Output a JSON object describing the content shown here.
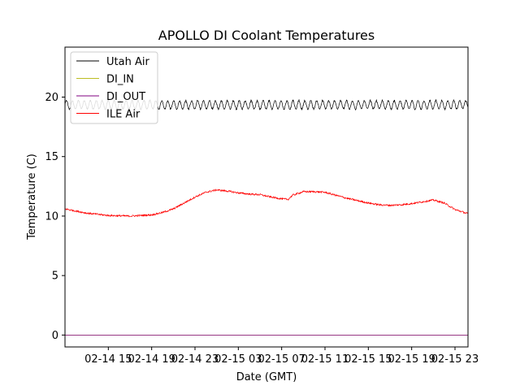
{
  "chart_data": {
    "type": "line",
    "title": "APOLLO DI Coolant Temperatures",
    "xlabel": "Date (GMT)",
    "ylabel": "Temperature (C)",
    "x_unit": "hours since 02-14 11:00 GMT",
    "xlim": [
      0,
      37.2
    ],
    "ylim": [
      -1,
      24.2
    ],
    "x_ticks": [
      {
        "value": 4,
        "label": "02-14 15"
      },
      {
        "value": 8,
        "label": "02-14 19"
      },
      {
        "value": 12,
        "label": "02-14 23"
      },
      {
        "value": 16,
        "label": "02-15 03"
      },
      {
        "value": 20,
        "label": "02-15 07"
      },
      {
        "value": 24,
        "label": "02-15 11"
      },
      {
        "value": 28,
        "label": "02-15 15"
      },
      {
        "value": 32,
        "label": "02-15 19"
      },
      {
        "value": 36,
        "label": "02-15 23"
      }
    ],
    "y_ticks": [
      {
        "value": 0,
        "label": "0"
      },
      {
        "value": 5,
        "label": "5"
      },
      {
        "value": 10,
        "label": "10"
      },
      {
        "value": 15,
        "label": "15"
      },
      {
        "value": 20,
        "label": "20"
      }
    ],
    "legend_position": "top-left",
    "series": [
      {
        "name": "Utah Air",
        "color": "#000000",
        "style": "oscillating",
        "center": 19.35,
        "amplitude": 0.35,
        "period": 0.55,
        "x": [
          0,
          37.2
        ],
        "y": [
          19.35,
          19.35
        ]
      },
      {
        "name": "DI_IN",
        "color": "#bcbd22",
        "style": "flat",
        "x": [
          0,
          37.2
        ],
        "y": [
          0,
          0
        ]
      },
      {
        "name": "DI_OUT",
        "color": "#800080",
        "style": "flat",
        "x": [
          0,
          37.2
        ],
        "y": [
          0,
          0
        ]
      },
      {
        "name": "ILE Air",
        "color": "#ff0000",
        "style": "noisy",
        "noise": 0.08,
        "x": [
          0,
          2,
          4,
          6,
          8,
          9,
          10,
          11,
          12,
          13,
          14,
          15,
          16,
          17,
          18,
          19,
          20,
          20.6,
          21,
          22,
          23,
          24,
          25,
          26,
          27,
          28,
          29,
          30,
          31,
          32,
          33,
          34,
          35,
          36,
          37.2
        ],
        "y": [
          10.6,
          10.25,
          10.05,
          10.0,
          10.1,
          10.3,
          10.6,
          11.1,
          11.6,
          12.0,
          12.2,
          12.1,
          11.95,
          11.85,
          11.8,
          11.6,
          11.45,
          11.4,
          11.75,
          12.05,
          12.05,
          12.0,
          11.75,
          11.5,
          11.3,
          11.1,
          10.95,
          10.9,
          10.95,
          11.05,
          11.2,
          11.35,
          11.1,
          10.55,
          10.2
        ]
      }
    ]
  }
}
